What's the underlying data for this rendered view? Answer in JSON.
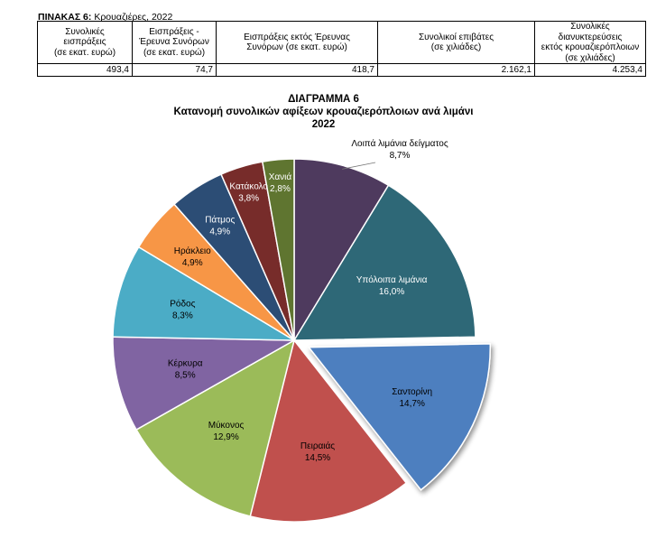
{
  "table": {
    "prefix": "ΠΙΝΑΚΑΣ 6:",
    "title": "Κρουαζιέρες, 2022",
    "headers": [
      [
        "Συνολικές",
        "εισπράξεις",
        "(σε εκατ. ευρώ)"
      ],
      [
        "Εισπράξεις -",
        "Έρευνα Συνόρων",
        "(σε εκατ. ευρώ)"
      ],
      [
        "Εισπράξεις εκτός Έρευνας",
        "Συνόρων (σε εκατ. ευρώ)"
      ],
      [
        "Συνολικοί επιβάτες",
        "(σε χιλιάδες)"
      ],
      [
        "Συνολικές διανυκτερεύσεις",
        "εκτός κρουαζιερόπλοιων",
        "(σε χιλιάδες)"
      ]
    ],
    "values": [
      "493,4",
      "74,7",
      "418,7",
      "2.162,1",
      "4.253,4"
    ]
  },
  "chart_title": {
    "line1": "ΔΙΑΓΡΑΜΜΑ 6",
    "line2": "Κατανομή συνολικών αφίξεων κρουαζιερόπλοιων ανά λιμάνι",
    "line3": "2022"
  },
  "chart_data": {
    "type": "pie",
    "exploded": "Σαντορίνη",
    "slices": [
      {
        "name": "Λοιπά λιμάνια δείγματος",
        "value": 8.7,
        "label": "8,7%",
        "color": "#4e3a5e"
      },
      {
        "name": "Υπόλοιπα λιμάνια",
        "value": 16.0,
        "label": "16,0%",
        "color": "#2e6877"
      },
      {
        "name": "Σαντορίνη",
        "value": 14.7,
        "label": "14,7%",
        "color": "#4e7fbf"
      },
      {
        "name": "Πειραιάς",
        "value": 14.5,
        "label": "14,5%",
        "color": "#c0504d"
      },
      {
        "name": "Μύκονος",
        "value": 12.9,
        "label": "12,9%",
        "color": "#9bbb59"
      },
      {
        "name": "Κέρκυρα",
        "value": 8.5,
        "label": "8,5%",
        "color": "#8064a2"
      },
      {
        "name": "Ρόδος",
        "value": 8.3,
        "label": "8,3%",
        "color": "#4bacc6"
      },
      {
        "name": "Ηράκλειο",
        "value": 4.9,
        "label": "4,9%",
        "color": "#f79646"
      },
      {
        "name": "Πάτμος",
        "value": 4.9,
        "label": "4,9%",
        "color": "#2c4d75"
      },
      {
        "name": "Κατάκολο",
        "value": 3.8,
        "label": "3,8%",
        "color": "#772c2a"
      },
      {
        "name": "Χανιά",
        "value": 2.8,
        "label": "2,8%",
        "color": "#5f7530"
      }
    ]
  }
}
